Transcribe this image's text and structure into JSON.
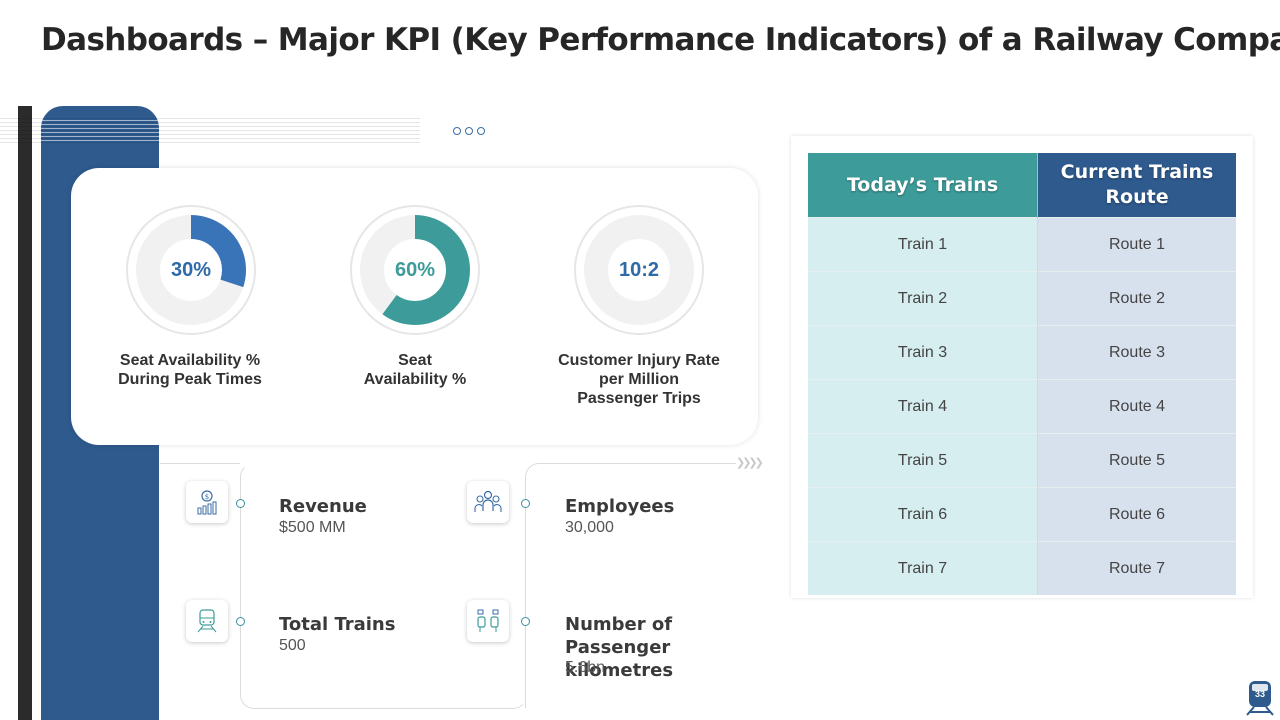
{
  "title": "Dashboards – Major KPI (Key Performance Indicators) of a Railway Company",
  "colors": {
    "blue": "#2e5a8e",
    "teal": "#3d9c9a",
    "gauge_blue": "#3a74b8",
    "gauge_teal": "#3d9c9a",
    "track": "#f1f1f1"
  },
  "gauges": [
    {
      "value_text": "30%",
      "fraction": 0.3,
      "color": "#3a74b8",
      "label_lines": [
        "Seat Availability  %",
        "During Peak Times"
      ]
    },
    {
      "value_text": "60%",
      "fraction": 0.6,
      "color": "#3d9c9a",
      "label_lines": [
        "Seat",
        "Availability  %"
      ]
    },
    {
      "value_text": "10:2",
      "fraction": 0.0,
      "color": "#3a74b8",
      "label_lines": [
        "Customer Injury Rate",
        "per Million",
        "Passenger Trips"
      ]
    }
  ],
  "stats": {
    "revenue": {
      "label": "Revenue",
      "value": "$500 MM",
      "icon": "revenue-growth-icon"
    },
    "employees": {
      "label": "Employees",
      "value": "30,000",
      "icon": "employees-group-icon"
    },
    "total_trains": {
      "label": "Total Trains",
      "value": "500",
      "icon": "train-icon"
    },
    "passenger_km": {
      "label_line1": "Number of Passenger",
      "label_line2": "kilometres",
      "value": "5.6bn",
      "icon": "passenger-seats-icon"
    }
  },
  "table": {
    "headers": [
      "Today’s Trains",
      "Current Trains Route"
    ],
    "rows": [
      [
        "Train 1",
        "Route 1"
      ],
      [
        "Train 2",
        "Route 2"
      ],
      [
        "Train 3",
        "Route 3"
      ],
      [
        "Train 4",
        "Route 4"
      ],
      [
        "Train 5",
        "Route 5"
      ],
      [
        "Train 6",
        "Route 6"
      ],
      [
        "Train 7",
        "Route 7"
      ]
    ]
  },
  "page_number": "33"
}
